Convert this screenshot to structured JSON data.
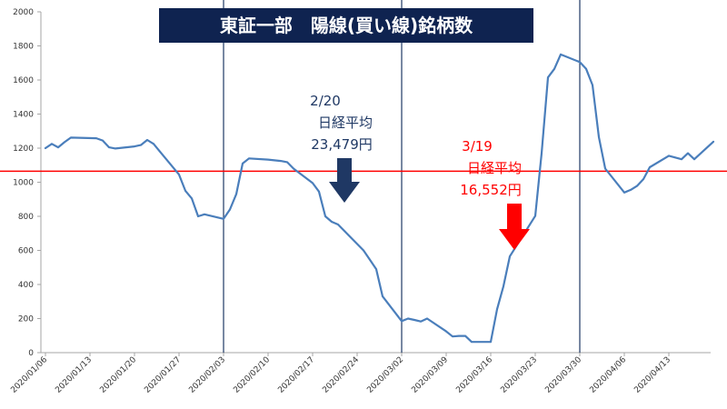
{
  "chart_data": {
    "type": "line",
    "title": "東証一部　陽線(買い線)銘柄数",
    "xlabel": "",
    "ylabel": "",
    "ylim": [
      0,
      2000
    ],
    "yticks": [
      0,
      200,
      400,
      600,
      800,
      1000,
      1200,
      1400,
      1600,
      1800,
      2000
    ],
    "x_range": [
      "2020-01-06",
      "2020-04-20"
    ],
    "xticks": [
      "2020/01/06",
      "2020/01/13",
      "2020/01/20",
      "2020/01/27",
      "2020/02/03",
      "2020/02/10",
      "2020/02/17",
      "2020/02/24",
      "2020/03/02",
      "2020/03/09",
      "2020/03/16",
      "2020/03/23",
      "2020/03/30",
      "2020/04/06",
      "2020/04/13"
    ],
    "grid": false,
    "line_color": "#4a7ebb",
    "series": [
      {
        "name": "",
        "points": [
          [
            "2020-01-06",
            1200
          ],
          [
            "2020-01-07",
            1225
          ],
          [
            "2020-01-08",
            1205
          ],
          [
            "2020-01-09",
            1235
          ],
          [
            "2020-01-10",
            1262
          ],
          [
            "2020-01-14",
            1258
          ],
          [
            "2020-01-15",
            1245
          ],
          [
            "2020-01-16",
            1205
          ],
          [
            "2020-01-17",
            1198
          ],
          [
            "2020-01-20",
            1210
          ],
          [
            "2020-01-21",
            1218
          ],
          [
            "2020-01-22",
            1248
          ],
          [
            "2020-01-23",
            1225
          ],
          [
            "2020-01-24",
            1180
          ],
          [
            "2020-01-27",
            1045
          ],
          [
            "2020-01-28",
            950
          ],
          [
            "2020-01-29",
            905
          ],
          [
            "2020-01-30",
            800
          ],
          [
            "2020-01-31",
            812
          ],
          [
            "2020-02-03",
            785
          ],
          [
            "2020-02-04",
            840
          ],
          [
            "2020-02-05",
            930
          ],
          [
            "2020-02-06",
            1110
          ],
          [
            "2020-02-07",
            1140
          ],
          [
            "2020-02-10",
            1133
          ],
          [
            "2020-02-12",
            1125
          ],
          [
            "2020-02-13",
            1118
          ],
          [
            "2020-02-14",
            1080
          ],
          [
            "2020-02-17",
            995
          ],
          [
            "2020-02-18",
            945
          ],
          [
            "2020-02-19",
            800
          ],
          [
            "2020-02-20",
            768
          ],
          [
            "2020-02-21",
            752
          ],
          [
            "2020-02-25",
            600
          ],
          [
            "2020-02-26",
            545
          ],
          [
            "2020-02-27",
            490
          ],
          [
            "2020-02-28",
            330
          ],
          [
            "2020-03-02",
            185
          ],
          [
            "2020-03-03",
            200
          ],
          [
            "2020-03-04",
            192
          ],
          [
            "2020-03-05",
            183
          ],
          [
            "2020-03-06",
            200
          ],
          [
            "2020-03-09",
            125
          ],
          [
            "2020-03-10",
            95
          ],
          [
            "2020-03-11",
            98
          ],
          [
            "2020-03-12",
            98
          ],
          [
            "2020-03-13",
            63
          ],
          [
            "2020-03-16",
            63
          ],
          [
            "2020-03-17",
            255
          ],
          [
            "2020-03-18",
            390
          ],
          [
            "2020-03-19",
            565
          ],
          [
            "2020-03-23",
            802
          ],
          [
            "2020-03-24",
            1170
          ],
          [
            "2020-03-25",
            1615
          ],
          [
            "2020-03-26",
            1665
          ],
          [
            "2020-03-27",
            1750
          ],
          [
            "2020-03-30",
            1705
          ],
          [
            "2020-03-31",
            1665
          ],
          [
            "2020-04-01",
            1570
          ],
          [
            "2020-04-02",
            1265
          ],
          [
            "2020-04-03",
            1080
          ],
          [
            "2020-04-06",
            940
          ],
          [
            "2020-04-07",
            955
          ],
          [
            "2020-04-08",
            978
          ],
          [
            "2020-04-09",
            1018
          ],
          [
            "2020-04-10",
            1088
          ],
          [
            "2020-04-13",
            1155
          ],
          [
            "2020-04-14",
            1145
          ],
          [
            "2020-04-15",
            1135
          ],
          [
            "2020-04-16",
            1170
          ],
          [
            "2020-04-17",
            1135
          ],
          [
            "2020-04-20",
            1238
          ]
        ]
      }
    ],
    "reference_line": {
      "y": 1065,
      "color": "#ff0000"
    },
    "vertical_lines": {
      "dates": [
        "2020-02-03",
        "2020-03-02",
        "2020-03-30"
      ],
      "color": "#1f3864"
    },
    "annotations": [
      {
        "lines": [
          "2/20",
          "日経平均",
          "23,479円"
        ],
        "color": "#1f3864",
        "arrow_color": "#1f3864",
        "position": "above-left"
      },
      {
        "lines": [
          "3/19",
          "日経平均",
          "16,552円"
        ],
        "color": "#ff0000",
        "arrow_color": "#ff0000",
        "position": "center"
      }
    ],
    "title_colors": {
      "background": "#0f2350",
      "text": "#ffffff"
    }
  }
}
